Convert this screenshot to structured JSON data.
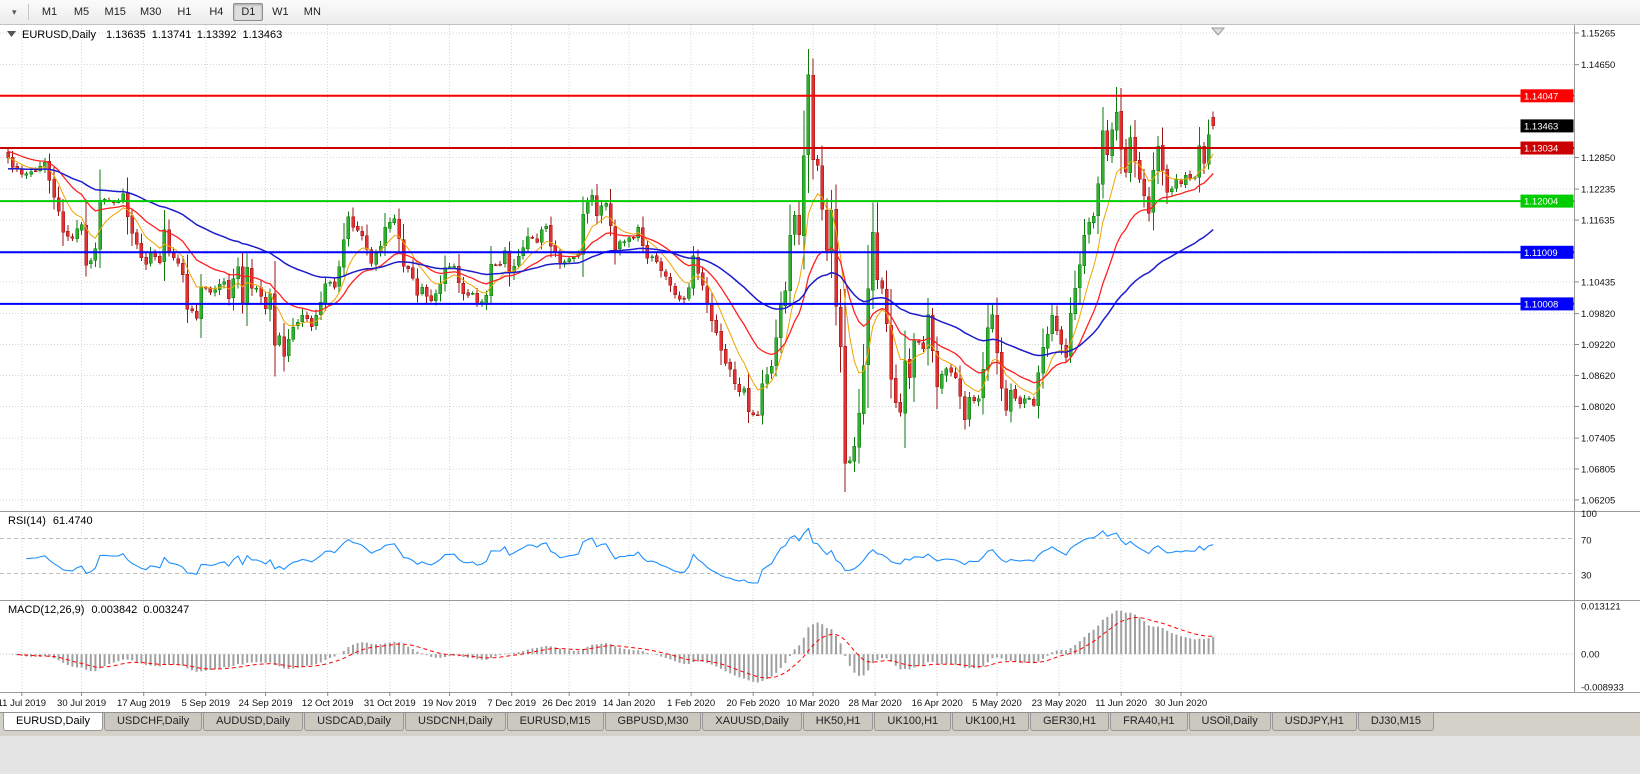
{
  "toolbar": {
    "dropdown_icon": "▾",
    "periods": [
      {
        "label": "M1"
      },
      {
        "label": "M5"
      },
      {
        "label": "M15"
      },
      {
        "label": "M30"
      },
      {
        "label": "H1"
      },
      {
        "label": "H4"
      },
      {
        "label": "D1",
        "active": true
      },
      {
        "label": "W1"
      },
      {
        "label": "MN"
      }
    ]
  },
  "chart_data": {
    "type": "candlestick",
    "symbol": "EURUSD",
    "timeframe": "Daily",
    "title": {
      "symbol": "EURUSD,Daily",
      "open": "1.13635",
      "high": "1.13741",
      "low": "1.13392",
      "close": "1.13463"
    },
    "bar_count": 263,
    "y_axis": {
      "max": 1.1542,
      "min": 1.0599,
      "tick_labels": [
        {
          "value": 1.15265,
          "text": "1.15265"
        },
        {
          "value": 1.1465,
          "text": "1.14650"
        },
        {
          "value": 1.1285,
          "text": "1.12850"
        },
        {
          "value": 1.12235,
          "text": "1.12235"
        },
        {
          "value": 1.11635,
          "text": "1.11635"
        },
        {
          "value": 1.10435,
          "text": "1.10435"
        },
        {
          "value": 1.0982,
          "text": "1.09820"
        },
        {
          "value": 1.0922,
          "text": "1.09220"
        },
        {
          "value": 1.0862,
          "text": "1.08620"
        },
        {
          "value": 1.0802,
          "text": "1.08020"
        },
        {
          "value": 1.07405,
          "text": "1.07405"
        },
        {
          "value": 1.06805,
          "text": "1.06805"
        },
        {
          "value": 1.06205,
          "text": "1.06205"
        }
      ],
      "gridlines": [
        1.15265,
        1.1465,
        1.14035,
        1.1342,
        1.1285,
        1.12235,
        1.11635,
        1.11035,
        1.10435,
        1.0982,
        1.0922,
        1.0862,
        1.0802,
        1.07405,
        1.06805,
        1.06205
      ]
    },
    "x_axis": {
      "labels": [
        {
          "text": "11 Jul 2019",
          "bar": 3
        },
        {
          "text": "30 Jul 2019",
          "bar": 16
        },
        {
          "text": "17 Aug 2019",
          "bar": 29.5
        },
        {
          "text": "5 Sep 2019",
          "bar": 43
        },
        {
          "text": "24 Sep 2019",
          "bar": 56
        },
        {
          "text": "12 Oct 2019",
          "bar": 69.5
        },
        {
          "text": "31 Oct 2019",
          "bar": 83
        },
        {
          "text": "19 Nov 2019",
          "bar": 96
        },
        {
          "text": "7 Dec 2019",
          "bar": 109.5
        },
        {
          "text": "26 Dec 2019",
          "bar": 122
        },
        {
          "text": "14 Jan 2020",
          "bar": 135
        },
        {
          "text": "1 Feb 2020",
          "bar": 148.5
        },
        {
          "text": "20 Feb 2020",
          "bar": 162
        },
        {
          "text": "10 Mar 2020",
          "bar": 175
        },
        {
          "text": "28 Mar 2020",
          "bar": 188.5
        },
        {
          "text": "16 Apr 2020",
          "bar": 202
        },
        {
          "text": "5 May 2020",
          "bar": 215
        },
        {
          "text": "23 May 2020",
          "bar": 228.5
        },
        {
          "text": "11 Jun 2020",
          "bar": 242
        },
        {
          "text": "30 Jun 2020",
          "bar": 255
        }
      ]
    },
    "anchor_closes": [
      [
        0,
        1.1285
      ],
      [
        2,
        1.1262
      ],
      [
        4,
        1.1253
      ],
      [
        6,
        1.1259
      ],
      [
        8,
        1.1276
      ],
      [
        10,
        1.1208
      ],
      [
        12,
        1.114
      ],
      [
        14,
        1.1128
      ],
      [
        16,
        1.1155
      ],
      [
        17,
        1.1076
      ],
      [
        18,
        1.1085
      ],
      [
        19,
        1.1108
      ],
      [
        20,
        1.1202
      ],
      [
        22,
        1.12
      ],
      [
        24,
        1.1199
      ],
      [
        25,
        1.1215
      ],
      [
        26,
        1.117
      ],
      [
        27,
        1.1138
      ],
      [
        29,
        1.109
      ],
      [
        30,
        1.1078
      ],
      [
        31,
        1.11
      ],
      [
        33,
        1.1081
      ],
      [
        34,
        1.1145
      ],
      [
        35,
        1.1101
      ],
      [
        36,
        1.1091
      ],
      [
        38,
        1.1057
      ],
      [
        39,
        1.099
      ],
      [
        41,
        1.0973
      ],
      [
        42,
        1.1034
      ],
      [
        45,
        1.1028
      ],
      [
        47,
        1.1044
      ],
      [
        48,
        1.1011
      ],
      [
        50,
        1.1073
      ],
      [
        51,
        1.1002
      ],
      [
        52,
        1.1072
      ],
      [
        53,
        1.1031
      ],
      [
        55,
        1.1016
      ],
      [
        56,
        1.0991
      ],
      [
        57,
        1.1021
      ],
      [
        58,
        1.0921
      ],
      [
        59,
        1.0939
      ],
      [
        60,
        1.0899
      ],
      [
        61,
        1.0932
      ],
      [
        63,
        1.0965
      ],
      [
        64,
        1.0979
      ],
      [
        66,
        1.0957
      ],
      [
        68,
        1.1004
      ],
      [
        69,
        1.104
      ],
      [
        71,
        1.1033
      ],
      [
        72,
        1.1073
      ],
      [
        73,
        1.1125
      ],
      [
        74,
        1.117
      ],
      [
        75,
        1.115
      ],
      [
        77,
        1.1133
      ],
      [
        79,
        1.108
      ],
      [
        81,
        1.1113
      ],
      [
        82,
        1.115
      ],
      [
        84,
        1.1166
      ],
      [
        85,
        1.1127
      ],
      [
        86,
        1.1074
      ],
      [
        88,
        1.1051
      ],
      [
        89,
        1.1018
      ],
      [
        90,
        1.1033
      ],
      [
        92,
        1.1007
      ],
      [
        93,
        1.1021
      ],
      [
        95,
        1.1071
      ],
      [
        97,
        1.1074
      ],
      [
        99,
        1.1021
      ],
      [
        101,
        1.1022
      ],
      [
        102,
        1.1
      ],
      [
        104,
        1.1018
      ],
      [
        105,
        1.1078
      ],
      [
        107,
        1.1077
      ],
      [
        108,
        1.1104
      ],
      [
        109,
        1.106
      ],
      [
        111,
        1.1093
      ],
      [
        113,
        1.1131
      ],
      [
        115,
        1.1121
      ],
      [
        116,
        1.1145
      ],
      [
        117,
        1.1152
      ],
      [
        118,
        1.1113
      ],
      [
        120,
        1.1078
      ],
      [
        122,
        1.1089
      ],
      [
        124,
        1.1098
      ],
      [
        125,
        1.1175
      ],
      [
        126,
        1.1199
      ],
      [
        127,
        1.1212
      ],
      [
        128,
        1.1172
      ],
      [
        130,
        1.1196
      ],
      [
        131,
        1.1153
      ],
      [
        132,
        1.1106
      ],
      [
        134,
        1.1122
      ],
      [
        136,
        1.1128
      ],
      [
        137,
        1.115
      ],
      [
        139,
        1.109
      ],
      [
        141,
        1.1083
      ],
      [
        143,
        1.1055
      ],
      [
        145,
        1.1019
      ],
      [
        147,
        1.101
      ],
      [
        148,
        1.1032
      ],
      [
        149,
        1.1094
      ],
      [
        150,
        1.106
      ],
      [
        152,
        1.1
      ],
      [
        154,
        1.0945
      ],
      [
        155,
        1.0911
      ],
      [
        157,
        1.0874
      ],
      [
        159,
        1.0831
      ],
      [
        160,
        1.0836
      ],
      [
        161,
        1.0792
      ],
      [
        163,
        1.0785
      ],
      [
        164,
        1.0846
      ],
      [
        166,
        1.088
      ],
      [
        168,
        1.0999
      ],
      [
        169,
        1.1026
      ],
      [
        170,
        1.1134
      ],
      [
        171,
        1.1173
      ],
      [
        172,
        1.1135
      ],
      [
        173,
        1.1288
      ],
      [
        174,
        1.1446
      ],
      [
        175,
        1.1281
      ],
      [
        176,
        1.127
      ],
      [
        177,
        1.1185
      ],
      [
        178,
        1.1105
      ],
      [
        179,
        1.1183
      ],
      [
        180,
        1.0996
      ],
      [
        181,
        1.0918
      ],
      [
        182,
        1.0692
      ],
      [
        183,
        1.0697
      ],
      [
        184,
        1.0725
      ],
      [
        185,
        1.0789
      ],
      [
        186,
        1.0881
      ],
      [
        187,
        1.103
      ],
      [
        188,
        1.114
      ],
      [
        189,
        1.1048
      ],
      [
        190,
        1.1031
      ],
      [
        191,
        1.0962
      ],
      [
        192,
        1.0855
      ],
      [
        193,
        1.0809
      ],
      [
        194,
        1.0791
      ],
      [
        195,
        1.0891
      ],
      [
        196,
        1.0858
      ],
      [
        197,
        1.093
      ],
      [
        199,
        1.0914
      ],
      [
        200,
        1.098
      ],
      [
        201,
        1.091
      ],
      [
        202,
        1.084
      ],
      [
        204,
        1.0875
      ],
      [
        206,
        1.0858
      ],
      [
        207,
        1.0822
      ],
      [
        208,
        1.0776
      ],
      [
        209,
        1.082
      ],
      [
        211,
        1.0817
      ],
      [
        212,
        1.0874
      ],
      [
        213,
        1.0955
      ],
      [
        214,
        1.098
      ],
      [
        215,
        1.0906
      ],
      [
        216,
        1.0837
      ],
      [
        217,
        1.0795
      ],
      [
        218,
        1.0833
      ],
      [
        220,
        1.0807
      ],
      [
        222,
        1.0818
      ],
      [
        223,
        1.0804
      ],
      [
        225,
        1.0917
      ],
      [
        227,
        1.0979
      ],
      [
        228,
        1.0949
      ],
      [
        230,
        1.0897
      ],
      [
        231,
        1.0983
      ],
      [
        233,
        1.1077
      ],
      [
        234,
        1.1134
      ],
      [
        236,
        1.1171
      ],
      [
        237,
        1.1234
      ],
      [
        238,
        1.1337
      ],
      [
        239,
        1.129
      ],
      [
        241,
        1.1373
      ],
      [
        242,
        1.1301
      ],
      [
        243,
        1.1256
      ],
      [
        244,
        1.1323
      ],
      [
        246,
        1.1243
      ],
      [
        248,
        1.1177
      ],
      [
        249,
        1.126
      ],
      [
        250,
        1.1307
      ],
      [
        252,
        1.1218
      ],
      [
        254,
        1.1242
      ],
      [
        255,
        1.1234
      ],
      [
        256,
        1.1251
      ],
      [
        258,
        1.1246
      ],
      [
        259,
        1.1308
      ],
      [
        260,
        1.1274
      ],
      [
        261,
        1.1329
      ],
      [
        262,
        1.13463
      ]
    ],
    "candle_overrides": {
      "174": {
        "high": 1.1495
      },
      "182": {
        "low": 1.0636
      },
      "241": {
        "high": 1.1422
      },
      "262": {
        "open": 1.13635,
        "high": 1.13741,
        "low": 1.13392,
        "close": 1.13463
      }
    },
    "style": {
      "bull_fill": "#2fae2f",
      "bull_stroke": "#0e7a0e",
      "bear_fill": "#e23030",
      "bear_stroke": "#991414"
    },
    "moving_averages": [
      {
        "period": 8,
        "color": "#f0a400",
        "width": 1,
        "seed": 1.1285
      },
      {
        "period": 20,
        "color": "#ff2222",
        "width": 1.3,
        "seed": 1.1298
      },
      {
        "period": 55,
        "color": "#1c1ccd",
        "width": 1.5,
        "seed": 1.1262
      }
    ],
    "horizontal_lines": [
      {
        "price": 1.14047,
        "label": "1.14047",
        "color": "#ff0000",
        "width": 2
      },
      {
        "price": 1.13034,
        "label": "1.13034",
        "color": "#cc0000",
        "width": 2
      },
      {
        "price": 1.12004,
        "label": "1.12004",
        "color": "#00cc00",
        "width": 2
      },
      {
        "price": 1.11009,
        "label": "1.11009",
        "color": "#0000ff",
        "width": 2
      },
      {
        "price": 1.10008,
        "label": "1.10008",
        "color": "#0000ff",
        "width": 2
      }
    ],
    "current_price": {
      "price": 1.13463,
      "label": "1.13463",
      "color": "#000000"
    },
    "indicators": {
      "rsi": {
        "label": "RSI(14)",
        "value": "61.4740",
        "color": "#1e90ff",
        "levels": [
          70,
          30
        ],
        "scale_labels": [
          {
            "value": 100,
            "text": "100"
          },
          {
            "value": 70,
            "text": "70"
          },
          {
            "value": 30,
            "text": "30"
          }
        ]
      },
      "macd": {
        "label": "MACD(12,26,9)",
        "value": "0.003842",
        "signal_value": "0.003247",
        "histogram_color": "#a0a0a0",
        "signal_color": "#ff0000",
        "scale": {
          "max": 0.013121,
          "min": -0.008933
        },
        "scale_labels": [
          {
            "value": 0.013121,
            "text": "0.013121"
          },
          {
            "value": 0,
            "text": "0.00"
          },
          {
            "value": -0.008933,
            "text": "-0.008933"
          }
        ]
      }
    }
  },
  "bottom_tabs": [
    {
      "label": "EURUSD,Daily",
      "active": true
    },
    {
      "label": "USDCHF,Daily"
    },
    {
      "label": "AUDUSD,Daily"
    },
    {
      "label": "USDCAD,Daily"
    },
    {
      "label": "USDCNH,Daily"
    },
    {
      "label": "EURUSD,M15"
    },
    {
      "label": "GBPUSD,M30"
    },
    {
      "label": "XAUUSD,Daily"
    },
    {
      "label": "HK50,H1"
    },
    {
      "label": "UK100,H1"
    },
    {
      "label": "UK100,H1"
    },
    {
      "label": "GER30,H1"
    },
    {
      "label": "FRA40,H1"
    },
    {
      "label": "USOil,Daily"
    },
    {
      "label": "USDJPY,H1"
    },
    {
      "label": "DJ30,M15"
    }
  ]
}
